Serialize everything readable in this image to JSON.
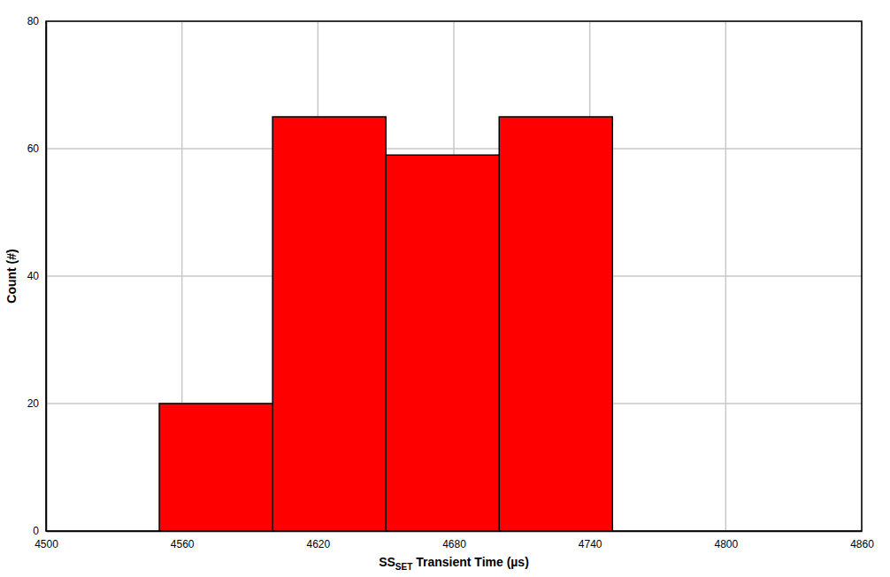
{
  "chart_data": {
    "type": "histogram",
    "xlabel": [
      "SS",
      "SET",
      " Transient Time (µs)"
    ],
    "ylabel": "Count (#)",
    "bins": [
      4550,
      4600,
      4650,
      4700,
      4750
    ],
    "counts": [
      20,
      65,
      59,
      65
    ],
    "color": "#ff0000",
    "xlim": [
      4500,
      4860
    ],
    "xticks": [
      4500,
      4560,
      4620,
      4680,
      4740,
      4800,
      4860
    ],
    "ylim": [
      0,
      80
    ],
    "yticks": [
      0,
      20,
      40,
      60,
      80
    ],
    "grid": true
  }
}
